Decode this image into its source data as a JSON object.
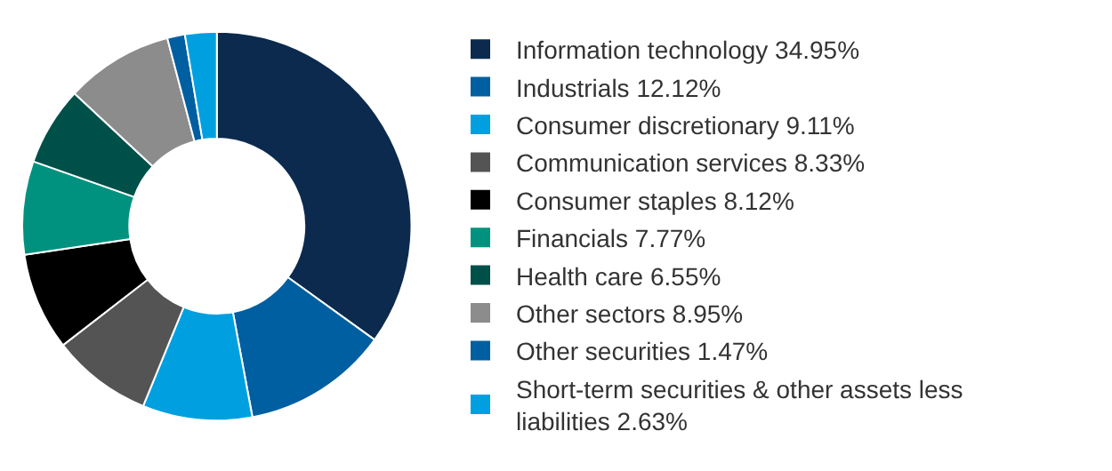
{
  "chart_data": {
    "type": "donut",
    "categories": [
      "Information technology",
      "Industrials",
      "Consumer discretionary",
      "Communication services",
      "Consumer staples",
      "Financials",
      "Health care",
      "Other sectors",
      "Other securities",
      "Short-term securities & other assets less liabilities"
    ],
    "values": [
      34.95,
      12.12,
      9.11,
      8.33,
      8.12,
      7.77,
      6.55,
      8.95,
      1.47,
      2.63
    ],
    "value_labels": [
      "34.95%",
      "12.12%",
      "9.11%",
      "8.33%",
      "8.12%",
      "7.77%",
      "6.55%",
      "8.95%",
      "1.47%",
      "2.63%"
    ],
    "colors": [
      "#0b2a4e",
      "#005fa0",
      "#00a0e0",
      "#545454",
      "#000000",
      "#00927e",
      "#00504a",
      "#8c8c8c",
      "#005fa0",
      "#00a0e0"
    ],
    "legend": "right"
  }
}
